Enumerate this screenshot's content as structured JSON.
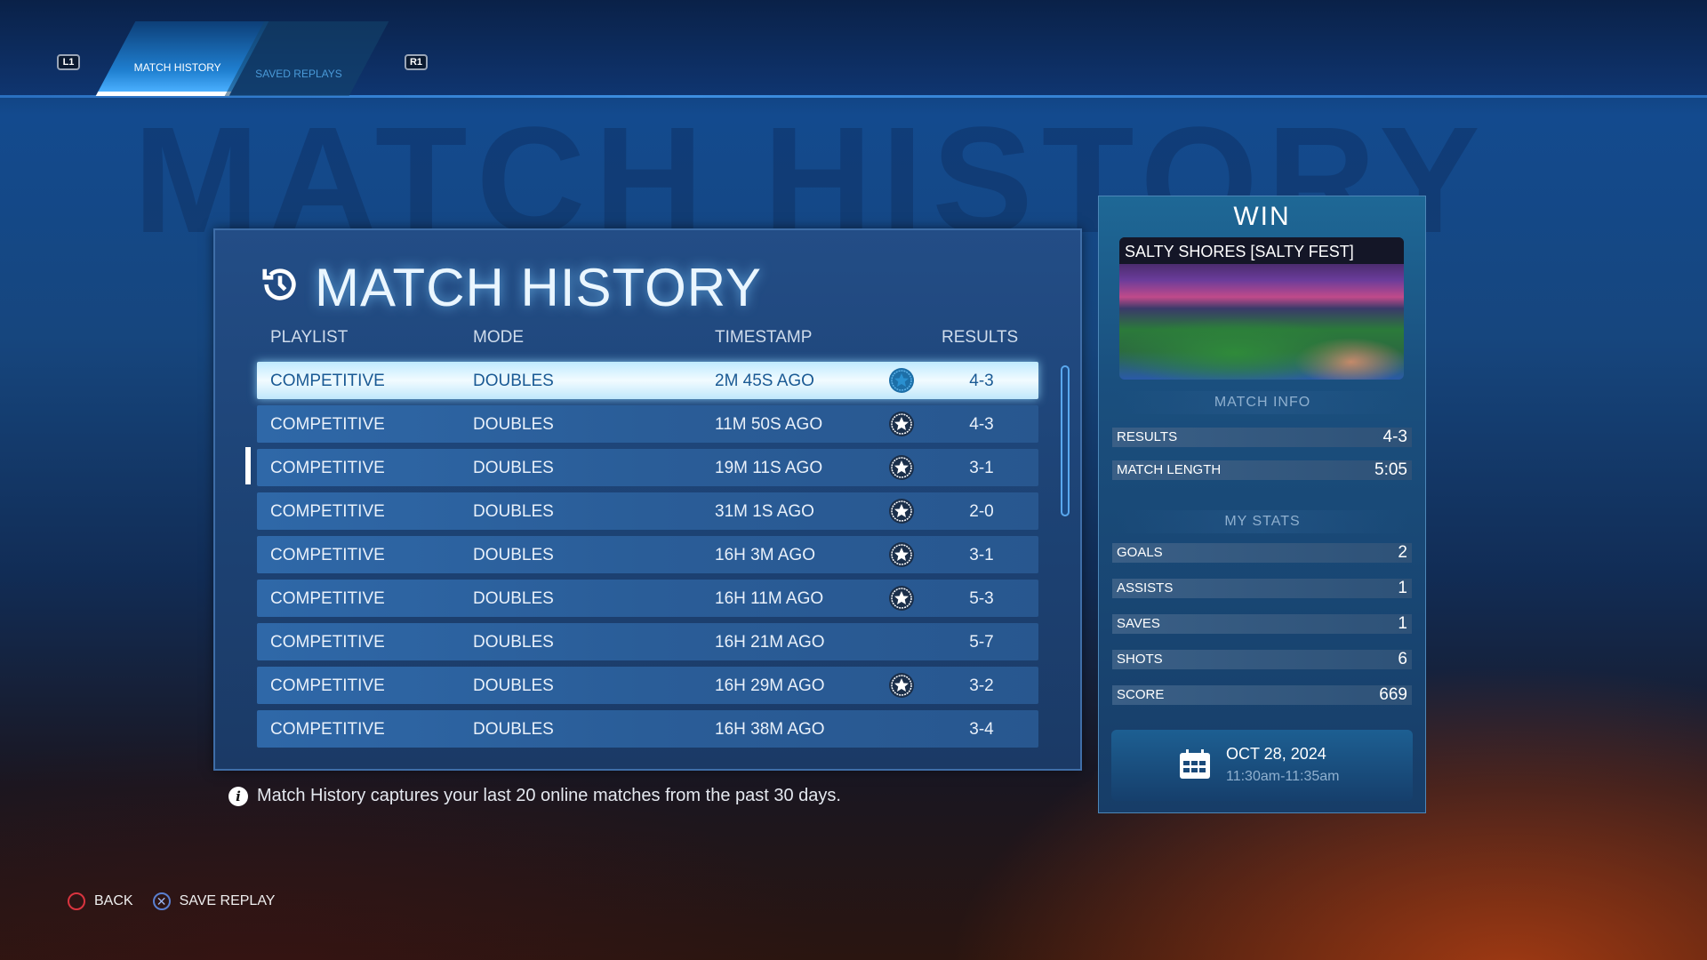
{
  "nav": {
    "left_button": "L1",
    "right_button": "R1",
    "tabs": [
      {
        "label": "MATCH HISTORY",
        "active": true
      },
      {
        "label": "SAVED REPLAYS",
        "active": false
      }
    ]
  },
  "background_title": "MATCH HISTORY",
  "panel": {
    "title": "MATCH HISTORY",
    "icon": "history-icon",
    "columns": [
      "PLAYLIST",
      "MODE",
      "TIMESTAMP",
      "RESULTS"
    ],
    "rows": [
      {
        "playlist": "COMPETITIVE",
        "mode": "DOUBLES",
        "timestamp": "2M 45S AGO",
        "win": true,
        "result": "4-3"
      },
      {
        "playlist": "COMPETITIVE",
        "mode": "DOUBLES",
        "timestamp": "11M 50S AGO",
        "win": true,
        "result": "4-3"
      },
      {
        "playlist": "COMPETITIVE",
        "mode": "DOUBLES",
        "timestamp": "19M 11S AGO",
        "win": true,
        "result": "3-1"
      },
      {
        "playlist": "COMPETITIVE",
        "mode": "DOUBLES",
        "timestamp": "31M 1S AGO",
        "win": true,
        "result": "2-0"
      },
      {
        "playlist": "COMPETITIVE",
        "mode": "DOUBLES",
        "timestamp": "16H 3M AGO",
        "win": true,
        "result": "3-1"
      },
      {
        "playlist": "COMPETITIVE",
        "mode": "DOUBLES",
        "timestamp": "16H 11M AGO",
        "win": true,
        "result": "5-3"
      },
      {
        "playlist": "COMPETITIVE",
        "mode": "DOUBLES",
        "timestamp": "16H 21M AGO",
        "win": false,
        "result": "5-7"
      },
      {
        "playlist": "COMPETITIVE",
        "mode": "DOUBLES",
        "timestamp": "16H 29M AGO",
        "win": true,
        "result": "3-2"
      },
      {
        "playlist": "COMPETITIVE",
        "mode": "DOUBLES",
        "timestamp": "16H 38M AGO",
        "win": false,
        "result": "3-4"
      }
    ],
    "selected_row": 0
  },
  "info_text": "Match History captures your last 20 online matches from the past 30 days.",
  "details": {
    "outcome": "WIN",
    "map_name": "SALTY SHORES [SALTY FEST]",
    "match_info_label": "MATCH INFO",
    "match_info": [
      {
        "label": "RESULTS",
        "value": "4-3"
      },
      {
        "label": "MATCH LENGTH",
        "value": "5:05"
      }
    ],
    "my_stats_label": "MY STATS",
    "my_stats": [
      {
        "label": "GOALS",
        "value": "2"
      },
      {
        "label": "ASSISTS",
        "value": "1"
      },
      {
        "label": "SAVES",
        "value": "1"
      },
      {
        "label": "SHOTS",
        "value": "6"
      },
      {
        "label": "SCORE",
        "value": "669"
      }
    ],
    "date": "OCT 28, 2024",
    "time_range": "11:30am-11:35am"
  },
  "footer": {
    "back_label": "BACK",
    "save_replay_label": "SAVE REPLAY"
  },
  "colors": {
    "win_star": "#ffffff",
    "selected_row": "#e6f7ff",
    "back_button": "#d9343f",
    "cross_button": "#5a7fd0"
  }
}
